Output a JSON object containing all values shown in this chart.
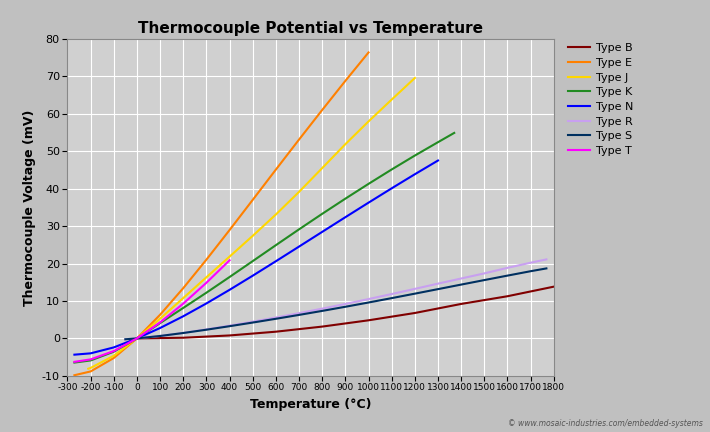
{
  "title": "Thermocouple Potential vs Temperature",
  "xlabel": "Temperature (°C)",
  "ylabel": "Thermocouple Voltage (mV)",
  "xlim": [
    -300,
    1800
  ],
  "ylim": [
    -10,
    80
  ],
  "xticks": [
    -300,
    -200,
    -100,
    0,
    100,
    200,
    300,
    400,
    500,
    600,
    700,
    800,
    900,
    1000,
    1100,
    1200,
    1300,
    1400,
    1500,
    1600,
    1700,
    1800
  ],
  "yticks": [
    -10,
    0,
    10,
    20,
    30,
    40,
    50,
    60,
    70,
    80
  ],
  "background_color": "#c0c0c0",
  "plot_bg_color": "#d0d0d0",
  "watermark": "© www.mosaic-industries.com/embedded-systems",
  "series": [
    {
      "label": "Type B",
      "color": "#800000",
      "data": [
        [
          0,
          0.0
        ],
        [
          200,
          0.178
        ],
        [
          400,
          0.787
        ],
        [
          600,
          1.792
        ],
        [
          800,
          3.154
        ],
        [
          1000,
          4.833
        ],
        [
          1200,
          6.786
        ],
        [
          1400,
          9.205
        ],
        [
          1600,
          11.263
        ],
        [
          1800,
          13.82
        ]
      ]
    },
    {
      "label": "Type E",
      "color": "#ff8000",
      "data": [
        [
          -270,
          -9.835
        ],
        [
          -200,
          -8.825
        ],
        [
          -100,
          -5.237
        ],
        [
          0,
          0.0
        ],
        [
          100,
          6.319
        ],
        [
          200,
          13.421
        ],
        [
          300,
          21.036
        ],
        [
          400,
          28.946
        ],
        [
          500,
          37.005
        ],
        [
          600,
          45.093
        ],
        [
          700,
          53.112
        ],
        [
          800,
          61.017
        ],
        [
          900,
          68.787
        ],
        [
          1000,
          76.373
        ]
      ]
    },
    {
      "label": "Type J",
      "color": "#ffd700",
      "data": [
        [
          -210,
          -8.095
        ],
        [
          -200,
          -7.89
        ],
        [
          -100,
          -4.633
        ],
        [
          0,
          0.0
        ],
        [
          100,
          5.269
        ],
        [
          200,
          10.779
        ],
        [
          300,
          16.327
        ],
        [
          400,
          21.848
        ],
        [
          500,
          27.393
        ],
        [
          600,
          33.102
        ],
        [
          700,
          39.132
        ],
        [
          800,
          45.494
        ],
        [
          900,
          51.877
        ],
        [
          1000,
          57.953
        ],
        [
          1100,
          63.792
        ],
        [
          1200,
          69.553
        ]
      ]
    },
    {
      "label": "Type K",
      "color": "#228b22",
      "data": [
        [
          -270,
          -6.458
        ],
        [
          -200,
          -5.891
        ],
        [
          -100,
          -3.554
        ],
        [
          0,
          0.0
        ],
        [
          100,
          4.096
        ],
        [
          200,
          8.138
        ],
        [
          300,
          12.209
        ],
        [
          400,
          16.397
        ],
        [
          500,
          20.644
        ],
        [
          600,
          24.905
        ],
        [
          700,
          29.129
        ],
        [
          800,
          33.275
        ],
        [
          900,
          37.326
        ],
        [
          1000,
          41.276
        ],
        [
          1100,
          45.119
        ],
        [
          1200,
          48.838
        ],
        [
          1300,
          52.41
        ],
        [
          1370,
          54.886
        ]
      ]
    },
    {
      "label": "Type N",
      "color": "#0000ff",
      "data": [
        [
          -270,
          -4.345
        ],
        [
          -200,
          -3.99
        ],
        [
          -100,
          -2.407
        ],
        [
          0,
          0.0
        ],
        [
          100,
          2.774
        ],
        [
          200,
          5.913
        ],
        [
          300,
          9.341
        ],
        [
          400,
          12.974
        ],
        [
          500,
          16.748
        ],
        [
          600,
          20.613
        ],
        [
          700,
          24.527
        ],
        [
          800,
          28.455
        ],
        [
          900,
          32.371
        ],
        [
          1000,
          36.256
        ],
        [
          1100,
          40.087
        ],
        [
          1200,
          43.846
        ],
        [
          1300,
          47.513
        ]
      ]
    },
    {
      "label": "Type R",
      "color": "#c8a0f0",
      "data": [
        [
          -50,
          -0.226
        ],
        [
          0,
          0.0
        ],
        [
          100,
          0.647
        ],
        [
          200,
          1.469
        ],
        [
          300,
          2.401
        ],
        [
          400,
          3.408
        ],
        [
          500,
          4.471
        ],
        [
          600,
          5.583
        ],
        [
          700,
          6.743
        ],
        [
          800,
          7.95
        ],
        [
          900,
          9.203
        ],
        [
          1000,
          10.506
        ],
        [
          1100,
          11.85
        ],
        [
          1200,
          13.228
        ],
        [
          1300,
          14.629
        ],
        [
          1400,
          15.998
        ],
        [
          1500,
          17.366
        ],
        [
          1600,
          18.849
        ],
        [
          1700,
          20.215
        ],
        [
          1768,
          21.101
        ]
      ]
    },
    {
      "label": "Type S",
      "color": "#003060",
      "data": [
        [
          -50,
          -0.236
        ],
        [
          0,
          0.0
        ],
        [
          100,
          0.646
        ],
        [
          200,
          1.441
        ],
        [
          300,
          2.323
        ],
        [
          400,
          3.259
        ],
        [
          500,
          4.233
        ],
        [
          600,
          5.239
        ],
        [
          700,
          6.275
        ],
        [
          800,
          7.345
        ],
        [
          900,
          8.449
        ],
        [
          1000,
          9.587
        ],
        [
          1100,
          10.757
        ],
        [
          1200,
          11.951
        ],
        [
          1300,
          13.159
        ],
        [
          1400,
          14.373
        ],
        [
          1500,
          15.576
        ],
        [
          1600,
          16.771
        ],
        [
          1700,
          17.947
        ],
        [
          1768,
          18.693
        ]
      ]
    },
    {
      "label": "Type T",
      "color": "#ff00ff",
      "data": [
        [
          -270,
          -6.258
        ],
        [
          -200,
          -5.603
        ],
        [
          -100,
          -3.379
        ],
        [
          0,
          0.0
        ],
        [
          100,
          4.279
        ],
        [
          200,
          9.288
        ],
        [
          300,
          14.862
        ],
        [
          400,
          20.872
        ]
      ]
    }
  ]
}
